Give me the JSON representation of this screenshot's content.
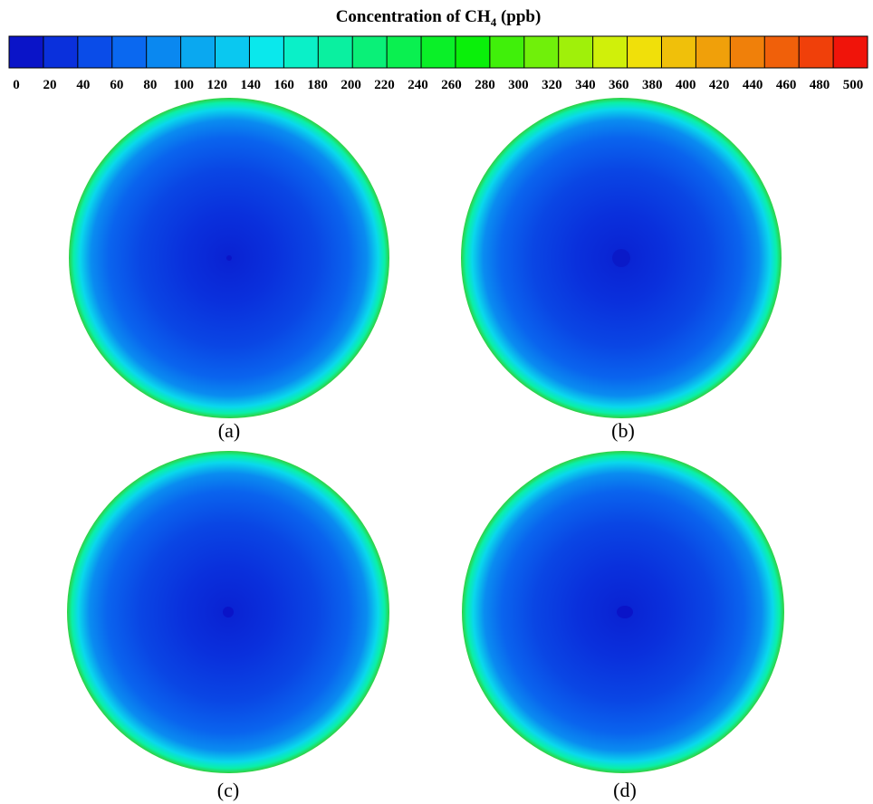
{
  "colorbar": {
    "title": {
      "prefix": "Concentration of CH",
      "subscript": "4",
      "suffix": " (ppb)"
    },
    "ticks": [
      0,
      20,
      40,
      60,
      80,
      100,
      120,
      140,
      160,
      180,
      200,
      220,
      240,
      260,
      280,
      300,
      320,
      340,
      360,
      380,
      400,
      420,
      440,
      460,
      480,
      500
    ],
    "colors": [
      "#0a14c8",
      "#0a30dc",
      "#0a4ce8",
      "#0a68f0",
      "#0a88f0",
      "#0aa8f0",
      "#0ac8f0",
      "#0ae8ec",
      "#0af0c8",
      "#0af0a0",
      "#0af078",
      "#0af050",
      "#0af028",
      "#0af00a",
      "#40f00a",
      "#70f00a",
      "#a0f00a",
      "#d0f00a",
      "#f0e00a",
      "#f0c00a",
      "#f0a00a",
      "#f0800a",
      "#f0600a",
      "#f0400a",
      "#f0140a"
    ]
  },
  "panels": [
    {
      "label": "(a)"
    },
    {
      "label": "(b)"
    },
    {
      "label": "(c)"
    },
    {
      "label": "(d)"
    }
  ]
}
